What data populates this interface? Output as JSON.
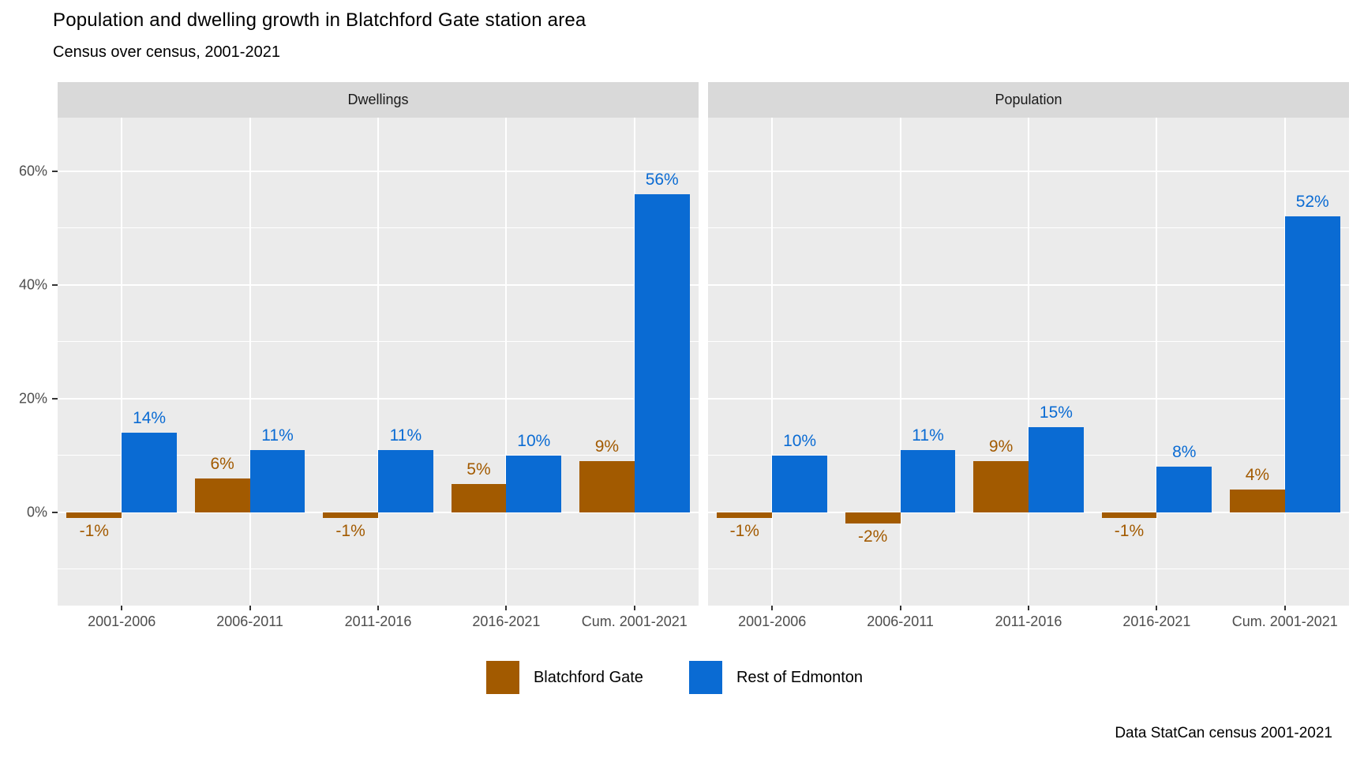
{
  "header": {
    "title": "Population and dwelling growth in Blatchford Gate station area",
    "subtitle": "Census over census, 2001-2021"
  },
  "caption": "Data StatCan census 2001-2021",
  "legend": {
    "items": [
      {
        "label": "Blatchford Gate",
        "color": "#A25A00"
      },
      {
        "label": "Rest of Edmonton",
        "color": "#0A6BD3"
      }
    ]
  },
  "chart_data": {
    "type": "bar",
    "title": "Population and dwelling growth in Blatchford Gate station area",
    "subtitle": "Census over census, 2001-2021",
    "caption": "Data StatCan census 2001-2021",
    "categories": [
      "2001-2006",
      "2006-2011",
      "2011-2016",
      "2016-2021",
      "Cum. 2001-2021"
    ],
    "facets": [
      {
        "label": "Dwellings",
        "series": [
          {
            "name": "Blatchford Gate",
            "color": "#A25A00",
            "values": [
              -1,
              6,
              -1,
              5,
              9
            ],
            "labels": [
              "-1%",
              "6%",
              "-1%",
              "5%",
              "9%"
            ]
          },
          {
            "name": "Rest of Edmonton",
            "color": "#0A6BD3",
            "values": [
              14,
              11,
              11,
              10,
              56
            ],
            "labels": [
              "14%",
              "11%",
              "11%",
              "10%",
              "56%"
            ]
          }
        ]
      },
      {
        "label": "Population",
        "series": [
          {
            "name": "Blatchford Gate",
            "color": "#A25A00",
            "values": [
              -1,
              -2,
              9,
              -1,
              4
            ],
            "labels": [
              "-1%",
              "-2%",
              "9%",
              "-1%",
              "4%"
            ]
          },
          {
            "name": "Rest of Edmonton",
            "color": "#0A6BD3",
            "values": [
              10,
              11,
              15,
              8,
              52
            ],
            "labels": [
              "10%",
              "11%",
              "15%",
              "8%",
              "52%"
            ]
          }
        ]
      }
    ],
    "y_axis": {
      "ticks": [
        {
          "value": 0,
          "label": "0%"
        },
        {
          "value": 20,
          "label": "20%"
        },
        {
          "value": 40,
          "label": "40%"
        },
        {
          "value": 60,
          "label": "60%"
        }
      ],
      "minor_ticks": [
        -10,
        10,
        30,
        50
      ],
      "ylim": [
        -16.4,
        69.4
      ]
    },
    "grid": true,
    "legend_position": "bottom"
  }
}
